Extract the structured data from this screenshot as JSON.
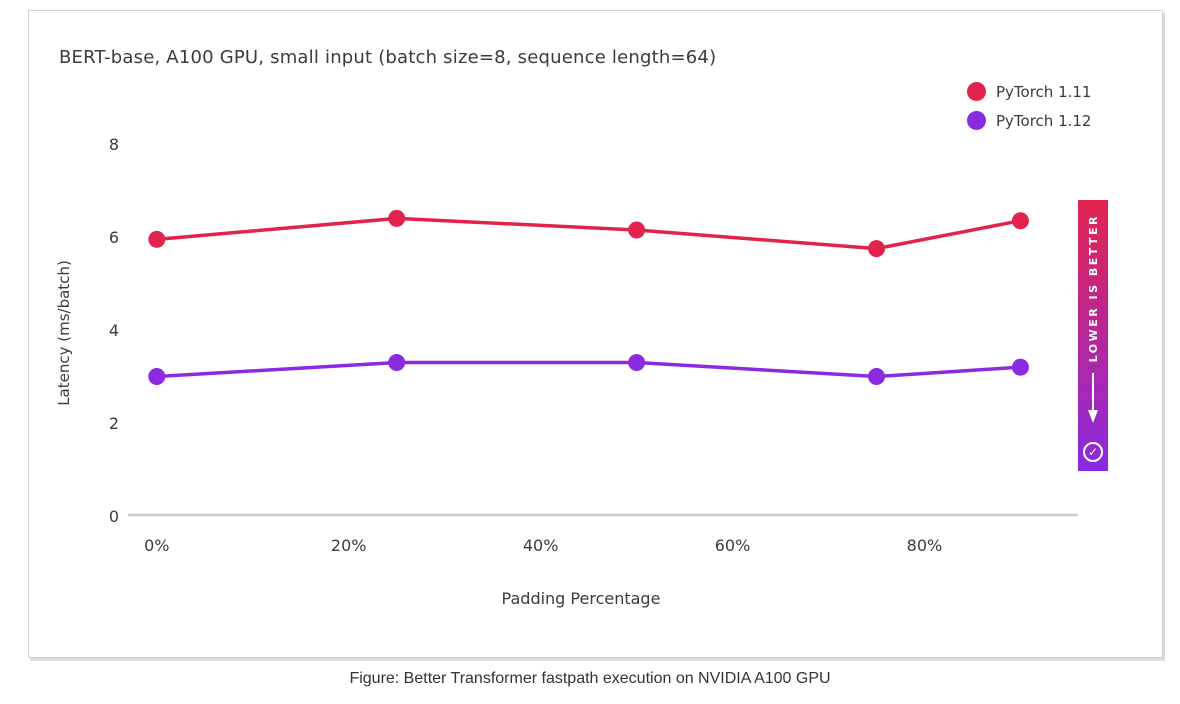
{
  "card": {
    "title": "BERT-base, A100 GPU, small input (batch size=8, sequence length=64)"
  },
  "legend": {
    "items": [
      {
        "label": "PyTorch 1.11",
        "color": "#e2234e"
      },
      {
        "label": "PyTorch 1.12",
        "color": "#8a2be2"
      }
    ]
  },
  "badge": {
    "text": "LOWER IS BETTER",
    "arrow_icon": "down-arrow-icon",
    "check_icon": "circled-check-icon",
    "check_glyph": "✓",
    "gradient_top": "#e2234e",
    "gradient_bottom": "#8a2be2"
  },
  "caption": "Figure: Better Transformer fastpath execution on NVIDIA A100 GPU",
  "chart_data": {
    "type": "line",
    "title": "BERT-base, A100 GPU, small input (batch size=8, sequence length=64)",
    "xlabel": "Padding Percentage",
    "ylabel": "Latency (ms/batch)",
    "x": [
      0,
      25,
      50,
      75,
      90
    ],
    "x_ticks": [
      0,
      20,
      40,
      60,
      80
    ],
    "x_tick_labels": [
      "0%",
      "20%",
      "40%",
      "60%",
      "80%"
    ],
    "xlim": [
      -3,
      96
    ],
    "y_ticks": [
      0,
      2,
      4,
      6,
      8
    ],
    "y_tick_labels": [
      "0",
      "2",
      "4",
      "6",
      "8"
    ],
    "ylim": [
      0,
      8
    ],
    "grid": false,
    "legend_position": "top-right",
    "annotation": "LOWER IS BETTER",
    "axis_color": "#cccccc",
    "series": [
      {
        "name": "PyTorch 1.11",
        "color": "#e2234e",
        "values": [
          5.95,
          6.4,
          6.15,
          5.75,
          6.35
        ]
      },
      {
        "name": "PyTorch 1.12",
        "color": "#8a2be2",
        "values": [
          3.0,
          3.3,
          3.3,
          3.0,
          3.2
        ]
      }
    ]
  }
}
